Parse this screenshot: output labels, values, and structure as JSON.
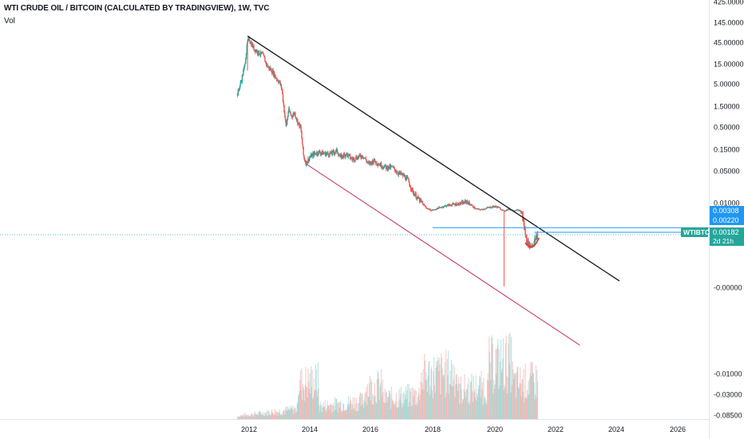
{
  "legend": {
    "title": "WTI CRUDE OIL / BITCOIN (CALCULATED BY TRADINGVIEW), 1W, TVC",
    "indicator": "Vol"
  },
  "colors": {
    "up": "#26a69a",
    "down": "#ef5350",
    "trendline_upper": "#131722",
    "trendline_lower": "#c2185b",
    "horizontal_lines": "#2196f3",
    "arc": "#e53935",
    "price_label_blue": "#2196f3",
    "symbol_badge": "#26a69a"
  },
  "chart_data": {
    "type": "candlestick",
    "symbol": "WTIBTC",
    "interval": "1W",
    "scale": "log",
    "x_ticks": [
      "2012",
      "2014",
      "2016",
      "2018",
      "2020",
      "2022",
      "2024",
      "2026"
    ],
    "y_ticks": [
      "425.00000",
      "145.00000",
      "45.00000",
      "15.00000",
      "5.00000",
      "1.50000",
      "0.50000",
      "0.15000",
      "0.05000",
      "0.01000",
      "-0.00000",
      "-0.01000",
      "-0.03000",
      "-0.08500"
    ],
    "price_labels": [
      {
        "text": "0.00308",
        "style": "blue"
      },
      {
        "text": "0.00220",
        "style": "blue"
      },
      {
        "text": "0.00182",
        "style": "green"
      }
    ],
    "symbol_badge": {
      "symbol": "WTIBTC",
      "countdown": "2d 21h"
    },
    "price_path": [
      [
        2011.62,
        2.5
      ],
      [
        2011.75,
        5
      ],
      [
        2011.85,
        10
      ],
      [
        2011.95,
        35
      ],
      [
        2012.0,
        40
      ],
      [
        2012.15,
        25
      ],
      [
        2012.3,
        20
      ],
      [
        2012.45,
        18
      ],
      [
        2012.6,
        10
      ],
      [
        2012.75,
        8
      ],
      [
        2012.9,
        5.5
      ],
      [
        2013.0,
        4.5
      ],
      [
        2013.08,
        3.2
      ],
      [
        2013.15,
        1.2
      ],
      [
        2013.22,
        0.45
      ],
      [
        2013.3,
        1.1
      ],
      [
        2013.4,
        0.8
      ],
      [
        2013.5,
        0.95
      ],
      [
        2013.6,
        0.6
      ],
      [
        2013.7,
        0.45
      ],
      [
        2013.8,
        0.1
      ],
      [
        2013.88,
        0.075
      ],
      [
        2014.0,
        0.1
      ],
      [
        2014.15,
        0.12
      ],
      [
        2014.3,
        0.13
      ],
      [
        2014.5,
        0.12
      ],
      [
        2014.7,
        0.12
      ],
      [
        2014.9,
        0.14
      ],
      [
        2015.0,
        0.1
      ],
      [
        2015.2,
        0.12
      ],
      [
        2015.4,
        0.09
      ],
      [
        2015.55,
        0.1
      ],
      [
        2015.75,
        0.11
      ],
      [
        2015.95,
        0.07
      ],
      [
        2016.1,
        0.085
      ],
      [
        2016.3,
        0.07
      ],
      [
        2016.5,
        0.06
      ],
      [
        2016.7,
        0.06
      ],
      [
        2016.9,
        0.045
      ],
      [
        2017.05,
        0.04
      ],
      [
        2017.2,
        0.032
      ],
      [
        2017.35,
        0.018
      ],
      [
        2017.5,
        0.013
      ],
      [
        2017.65,
        0.01
      ],
      [
        2017.8,
        0.006
      ],
      [
        2017.95,
        0.004
      ],
      [
        2018.05,
        0.0045
      ],
      [
        2018.2,
        0.006
      ],
      [
        2018.4,
        0.0075
      ],
      [
        2018.6,
        0.0085
      ],
      [
        2018.8,
        0.009
      ],
      [
        2018.95,
        0.0095
      ],
      [
        2019.1,
        0.0105
      ],
      [
        2019.25,
        0.008
      ],
      [
        2019.4,
        0.005
      ],
      [
        2019.55,
        0.0045
      ],
      [
        2019.7,
        0.0055
      ],
      [
        2019.85,
        0.0065
      ],
      [
        2020.0,
        0.007
      ],
      [
        2020.1,
        0.0065
      ],
      [
        2020.2,
        0.005
      ],
      [
        2020.3,
        0.0035
      ],
      [
        2020.45,
        0.005
      ],
      [
        2020.6,
        0.004
      ],
      [
        2020.75,
        0.0042
      ],
      [
        2020.9,
        0.003
      ],
      [
        2021.05,
        0.0015
      ],
      [
        2021.15,
        0.0012
      ],
      [
        2021.25,
        0.0013
      ],
      [
        2021.35,
        0.0016
      ],
      [
        2021.42,
        0.00182
      ]
    ],
    "wick_spikes": [
      {
        "x": 2011.95,
        "low": 8
      },
      {
        "x": 2020.3,
        "low": -0.001
      }
    ],
    "trendlines": [
      {
        "name": "upper",
        "from": [
          2011.95,
          46
        ],
        "to": [
          2024.1,
          -0.0007
        ]
      },
      {
        "name": "lower",
        "from": [
          2013.9,
          0.07
        ],
        "to": [
          2022.8,
          -0.0042
        ]
      }
    ],
    "horizontal_levels": [
      0.0022,
      0.00182
    ],
    "volume_pane": {
      "present": true
    }
  }
}
